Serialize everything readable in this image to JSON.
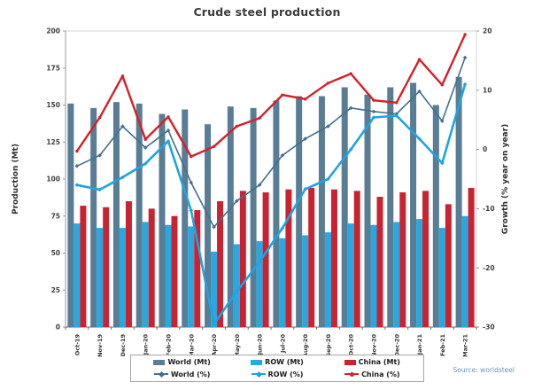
{
  "chart_data": {
    "type": "bar+line combo",
    "title": "Crude steel production",
    "source": "Source: worldsteel",
    "grid": false,
    "legend_position": "bottom",
    "categories": [
      "Oct-19",
      "Nov-19",
      "Dec-19",
      "Jan-20",
      "Feb-20",
      "Mar-20",
      "Apr-20",
      "May-20",
      "Jun-20",
      "Jul-20",
      "Aug-20",
      "Sep-20",
      "Oct-20",
      "Nov-20",
      "Dec-20",
      "Jan-21",
      "Feb-21",
      "Mar-21"
    ],
    "bar_series": [
      {
        "name": "World (Mt)",
        "axis": "left",
        "color": "#587d94",
        "values": [
          151,
          148,
          152,
          151,
          144,
          147,
          137,
          149,
          148,
          153,
          156,
          156,
          162,
          157,
          162,
          165,
          150,
          169
        ]
      },
      {
        "name": "ROW (Mt)",
        "axis": "left",
        "color": "#29a8e0",
        "values": [
          70,
          67,
          67,
          71,
          69,
          68,
          51,
          56,
          58,
          60,
          62,
          64,
          70,
          69,
          71,
          73,
          67,
          75
        ]
      },
      {
        "name": "China (Mt)",
        "axis": "left",
        "color": "#c92231",
        "values": [
          82,
          81,
          85,
          80,
          75,
          79,
          85,
          92,
          91,
          93,
          94,
          93,
          92,
          88,
          91,
          92,
          83,
          94
        ]
      }
    ],
    "line_series": [
      {
        "name": "World (%)",
        "axis": "right",
        "color": "#44708e",
        "marker": "diamond",
        "values": [
          -2.8,
          -1.0,
          3.9,
          0.3,
          3.2,
          -5.6,
          -13.1,
          -8.7,
          -6.0,
          -1.0,
          1.8,
          3.9,
          7.0,
          6.4,
          6.0,
          9.8,
          4.8,
          15.5
        ]
      },
      {
        "name": "ROW (%)",
        "axis": "right",
        "color": "#1fa3e3",
        "marker": "diamond",
        "values": [
          -6.0,
          -6.8,
          -4.7,
          -2.4,
          1.4,
          -10.3,
          -29.5,
          -24.0,
          -19.0,
          -13.3,
          -6.7,
          -5.0,
          0.0,
          5.4,
          5.7,
          1.8,
          -2.3,
          11.0
        ]
      },
      {
        "name": "China (%)",
        "axis": "right",
        "color": "#d71f27",
        "marker": "circle",
        "values": [
          -0.3,
          5.4,
          12.4,
          1.7,
          5.5,
          -1.2,
          0.5,
          3.9,
          5.3,
          9.2,
          8.5,
          11.2,
          12.8,
          8.3,
          7.9,
          15.2,
          10.9,
          19.4
        ]
      }
    ],
    "left_axis": {
      "title": "Production (Mt)",
      "min": 0,
      "max": 200,
      "step": 25,
      "ticks": [
        0,
        25,
        50,
        75,
        100,
        125,
        150,
        175,
        200
      ]
    },
    "right_axis": {
      "title": "Growth (% year on year)",
      "min": -30,
      "max": 20,
      "step": 10,
      "ticks": [
        20,
        10,
        0,
        -10,
        -20,
        -30
      ]
    }
  },
  "legend": {
    "labels": [
      "World (Mt)",
      "ROW (Mt)",
      "China (Mt)",
      "World (%)",
      "ROW (%)",
      "China (%)"
    ]
  }
}
